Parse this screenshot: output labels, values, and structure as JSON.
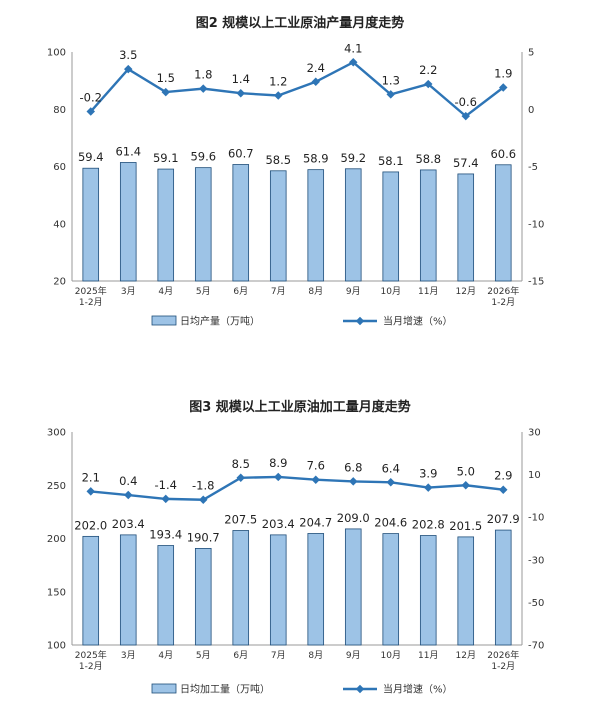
{
  "charts": [
    {
      "type": "bar",
      "title": "图2  规模以上工业原油产量月度走势",
      "categories": [
        [
          "2025年",
          "1-2月"
        ],
        [
          "3月"
        ],
        [
          "4月"
        ],
        [
          "5月"
        ],
        [
          "6月"
        ],
        [
          "7月"
        ],
        [
          "8月"
        ],
        [
          "9月"
        ],
        [
          "10月"
        ],
        [
          "11月"
        ],
        [
          "12月"
        ],
        [
          "2026年",
          "1-2月"
        ]
      ],
      "series": [
        {
          "name": "日均产量（万吨）",
          "type": "bar",
          "axis": "left",
          "values": [
            59.4,
            61.4,
            59.1,
            59.6,
            60.7,
            58.5,
            58.9,
            59.2,
            58.1,
            58.8,
            57.4,
            60.6
          ],
          "labels": [
            "59.4",
            "61.4",
            "59.1",
            "59.6",
            "60.7",
            "58.5",
            "58.9",
            "59.2",
            "58.1",
            "58.8",
            "57.4",
            "60.6"
          ]
        },
        {
          "name": "当月增速（%）",
          "type": "line",
          "axis": "right",
          "values": [
            -0.2,
            3.5,
            1.5,
            1.8,
            1.4,
            1.2,
            2.4,
            4.1,
            1.3,
            2.2,
            -0.6,
            1.9
          ],
          "labels": [
            "-0.2",
            "3.5",
            "1.5",
            "1.8",
            "1.4",
            "1.2",
            "2.4",
            "4.1",
            "1.3",
            "2.2",
            "-0.6",
            "1.9"
          ]
        }
      ],
      "y_left": {
        "min": 20,
        "max": 100,
        "ticks": [
          "20",
          "40",
          "60",
          "80",
          "100"
        ]
      },
      "y_right": {
        "min": -15,
        "max": 5,
        "ticks": [
          "-15",
          "-10",
          "-5",
          "0",
          "5"
        ]
      },
      "legend_placement": "bottom"
    },
    {
      "type": "bar",
      "title": "图3  规模以上工业原油加工量月度走势",
      "categories": [
        [
          "2025年",
          "1-2月"
        ],
        [
          "3月"
        ],
        [
          "4月"
        ],
        [
          "5月"
        ],
        [
          "6月"
        ],
        [
          "7月"
        ],
        [
          "8月"
        ],
        [
          "9月"
        ],
        [
          "10月"
        ],
        [
          "11月"
        ],
        [
          "12月"
        ],
        [
          "2026年",
          "1-2月"
        ]
      ],
      "series": [
        {
          "name": "日均加工量（万吨）",
          "type": "bar",
          "axis": "left",
          "values": [
            202.0,
            203.4,
            193.4,
            190.7,
            207.5,
            203.4,
            204.7,
            209.0,
            204.6,
            202.8,
            201.5,
            207.9
          ],
          "labels": [
            "202.0",
            "203.4",
            "193.4",
            "190.7",
            "207.5",
            "203.4",
            "204.7",
            "209.0",
            "204.6",
            "202.8",
            "201.5",
            "207.9"
          ]
        },
        {
          "name": "当月增速（%）",
          "type": "line",
          "axis": "right",
          "values": [
            2.1,
            0.4,
            -1.4,
            -1.8,
            8.5,
            8.9,
            7.6,
            6.8,
            6.4,
            3.9,
            5.0,
            2.9
          ],
          "labels": [
            "2.1",
            "0.4",
            "-1.4",
            "-1.8",
            "8.5",
            "8.9",
            "7.6",
            "6.8",
            "6.4",
            "3.9",
            "5.0",
            "2.9"
          ]
        }
      ],
      "y_left": {
        "min": 100,
        "max": 300,
        "ticks": [
          "100",
          "150",
          "200",
          "250",
          "300"
        ]
      },
      "y_right": {
        "min": -70,
        "max": 30,
        "ticks": [
          "-70",
          "-50",
          "-30",
          "-10",
          "10",
          "30"
        ]
      },
      "legend_placement": "bottom"
    }
  ],
  "colors": {
    "bar_fill": "#9dc3e6",
    "bar_stroke": "#1f4e79",
    "line": "#2e75b6"
  }
}
